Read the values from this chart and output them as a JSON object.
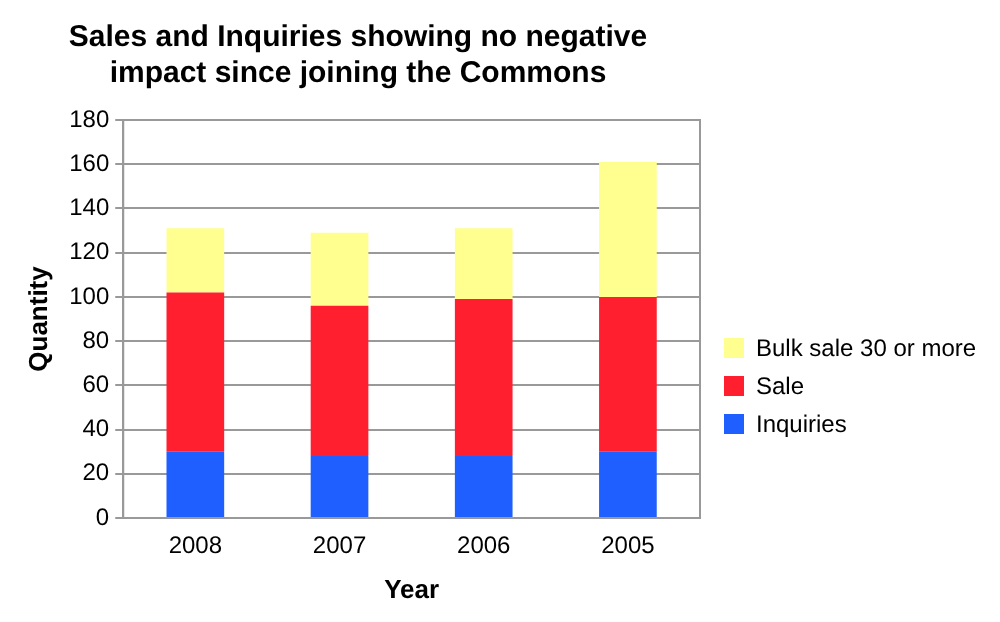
{
  "chart_data": {
    "type": "bar",
    "title": "Sales and Inquiries showing no negative impact since joining the Commons",
    "xlabel": "Year",
    "ylabel": "Quantity",
    "categories": [
      "2008",
      "2007",
      "2006",
      "2005"
    ],
    "stacked": true,
    "series": [
      {
        "name": "Inquiries",
        "color": "#1f5fff",
        "values": [
          30,
          28,
          28,
          30
        ]
      },
      {
        "name": "Sale",
        "color": "#ff1f2f",
        "values": [
          72,
          68,
          71,
          70
        ]
      },
      {
        "name": "Bulk sale 30 or more",
        "color": "#ffff8f",
        "values": [
          29,
          33,
          32,
          61
        ]
      }
    ],
    "ylim": [
      0,
      180
    ],
    "yticks": [
      0,
      20,
      40,
      60,
      80,
      100,
      120,
      140,
      160,
      180
    ],
    "grid": "y",
    "legend": "right"
  }
}
